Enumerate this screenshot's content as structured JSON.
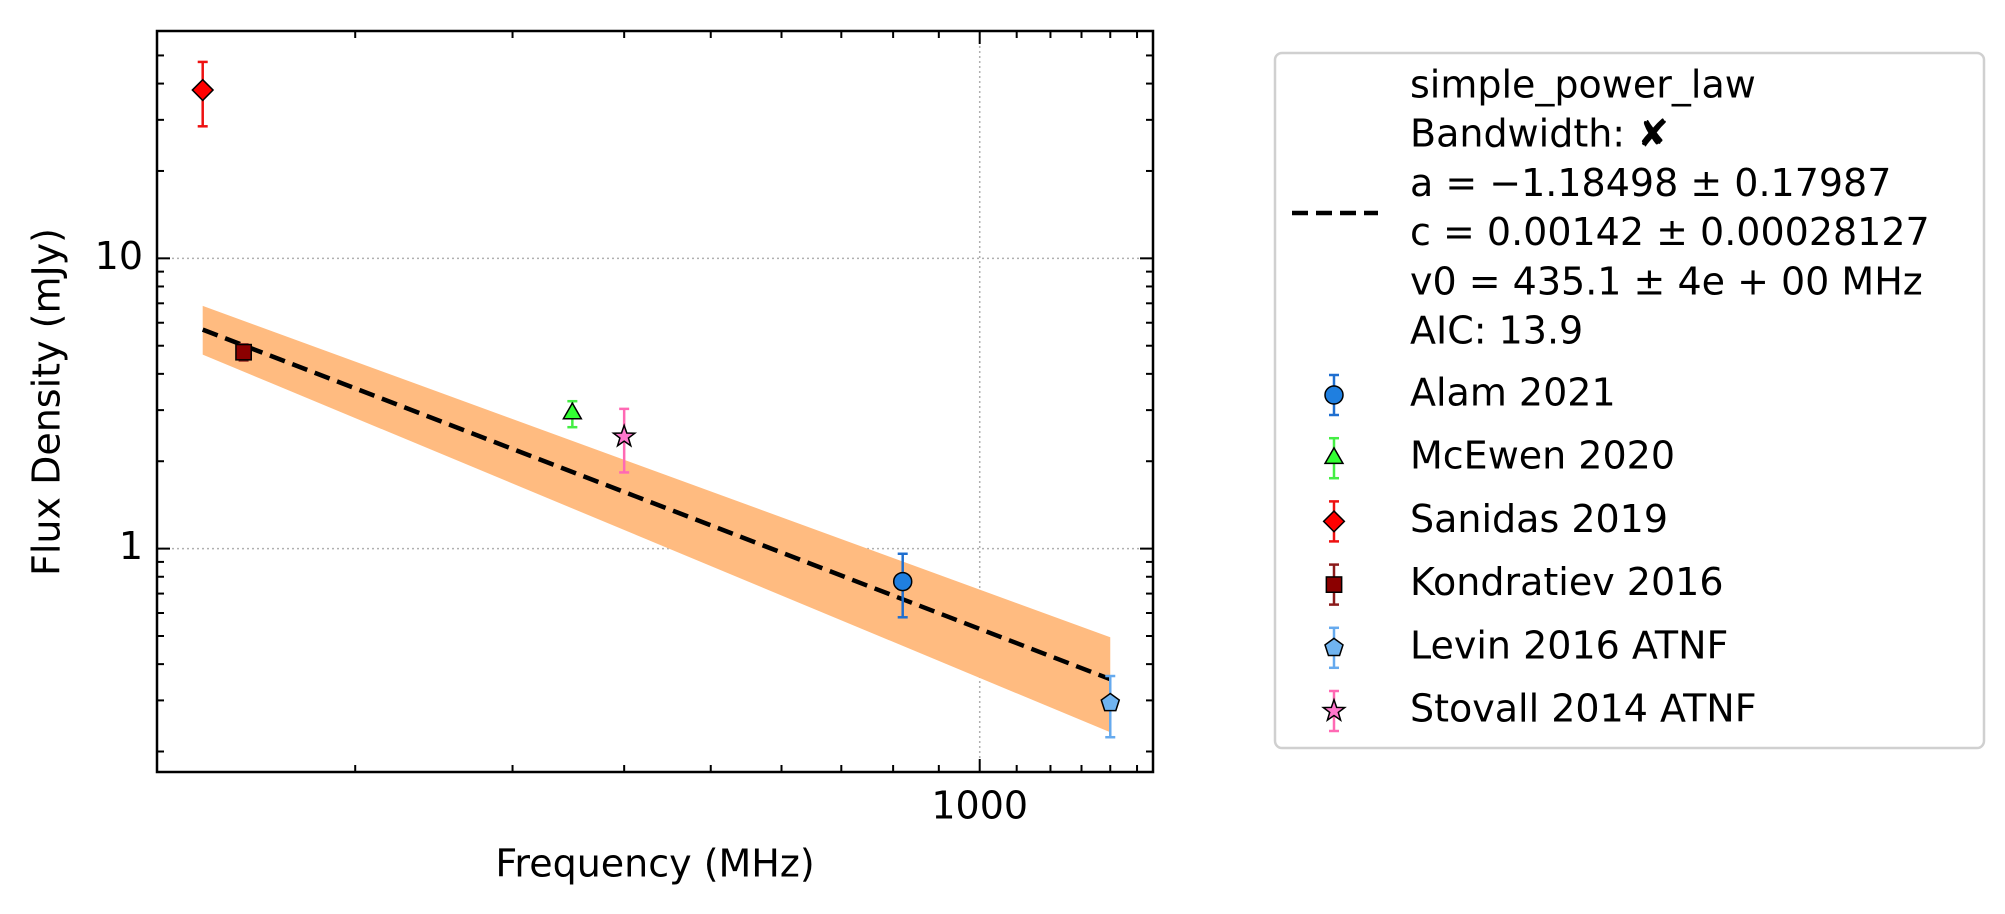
{
  "chart_data": {
    "type": "scatter",
    "xlabel": "Frequency (MHz)",
    "ylabel": "Flux Density (mJy)",
    "log_x": true,
    "log_y": true,
    "grid": true,
    "xlim": [
      120,
      1563
    ],
    "ylim": [
      0.17,
      60.7
    ],
    "xticks": [
      1000
    ],
    "yticks": [
      1,
      10
    ],
    "xminorticks": [
      200,
      300,
      400,
      500,
      600,
      700,
      800,
      900,
      1100,
      1200,
      1300,
      1400,
      1500
    ],
    "yminorticks": [
      0.2,
      0.3,
      0.4,
      0.5,
      0.6,
      0.7,
      0.8,
      0.9,
      2,
      3,
      4,
      5,
      6,
      7,
      8,
      9,
      20,
      30,
      40,
      50
    ],
    "legend_position": "outside right",
    "fit": {
      "name": "simple_power_law",
      "legend_lines": [
        "Bandwidth: ✘",
        "a = −1.18498 ± 0.17987",
        "c = 0.00142 ± 0.00028127",
        "v0 = 435.1 ± 4e + 00 MHz",
        "AIC: 13.9"
      ],
      "color": "#000000",
      "band_color": "#ffbb80",
      "x": [
        135,
        1400
      ],
      "values": [
        5.68,
        0.355
      ],
      "band_lower": [
        4.66,
        0.233
      ],
      "band_upper": [
        6.86,
        0.495
      ]
    },
    "series": [
      {
        "name": "Alam 2021",
        "marker": "circle",
        "color": "#1f7fe0",
        "ecolor": "#1f6fd0",
        "x": [
          820
        ],
        "values": [
          0.77
        ],
        "errors": [
          0.19
        ]
      },
      {
        "name": "McEwen 2020",
        "marker": "triangle",
        "color": "#33ff33",
        "ecolor": "#44ee44",
        "x": [
          350
        ],
        "values": [
          2.92
        ],
        "errors": [
          0.3
        ]
      },
      {
        "name": "Sanidas 2019",
        "marker": "diamond",
        "color": "#ff0000",
        "ecolor": "#ee1111",
        "x": [
          135
        ],
        "values": [
          38
        ],
        "errors": [
          9.5
        ]
      },
      {
        "name": "Kondratiev 2016",
        "marker": "square",
        "color": "#8b0000",
        "ecolor": "#8b1a1a",
        "x": [
          150
        ],
        "values": [
          4.75
        ],
        "errors": [
          0.3
        ]
      },
      {
        "name": "Levin 2016 ATNF",
        "marker": "pentagon",
        "color": "#70b4f0",
        "ecolor": "#66aaee",
        "x": [
          1400
        ],
        "values": [
          0.294
        ],
        "errors": [
          0.07
        ]
      },
      {
        "name": "Stovall 2014 ATNF",
        "marker": "star",
        "color": "#ff77cc",
        "ecolor": "#ff69b4",
        "x": [
          400
        ],
        "values": [
          2.43
        ],
        "errors": [
          0.6
        ]
      }
    ]
  }
}
